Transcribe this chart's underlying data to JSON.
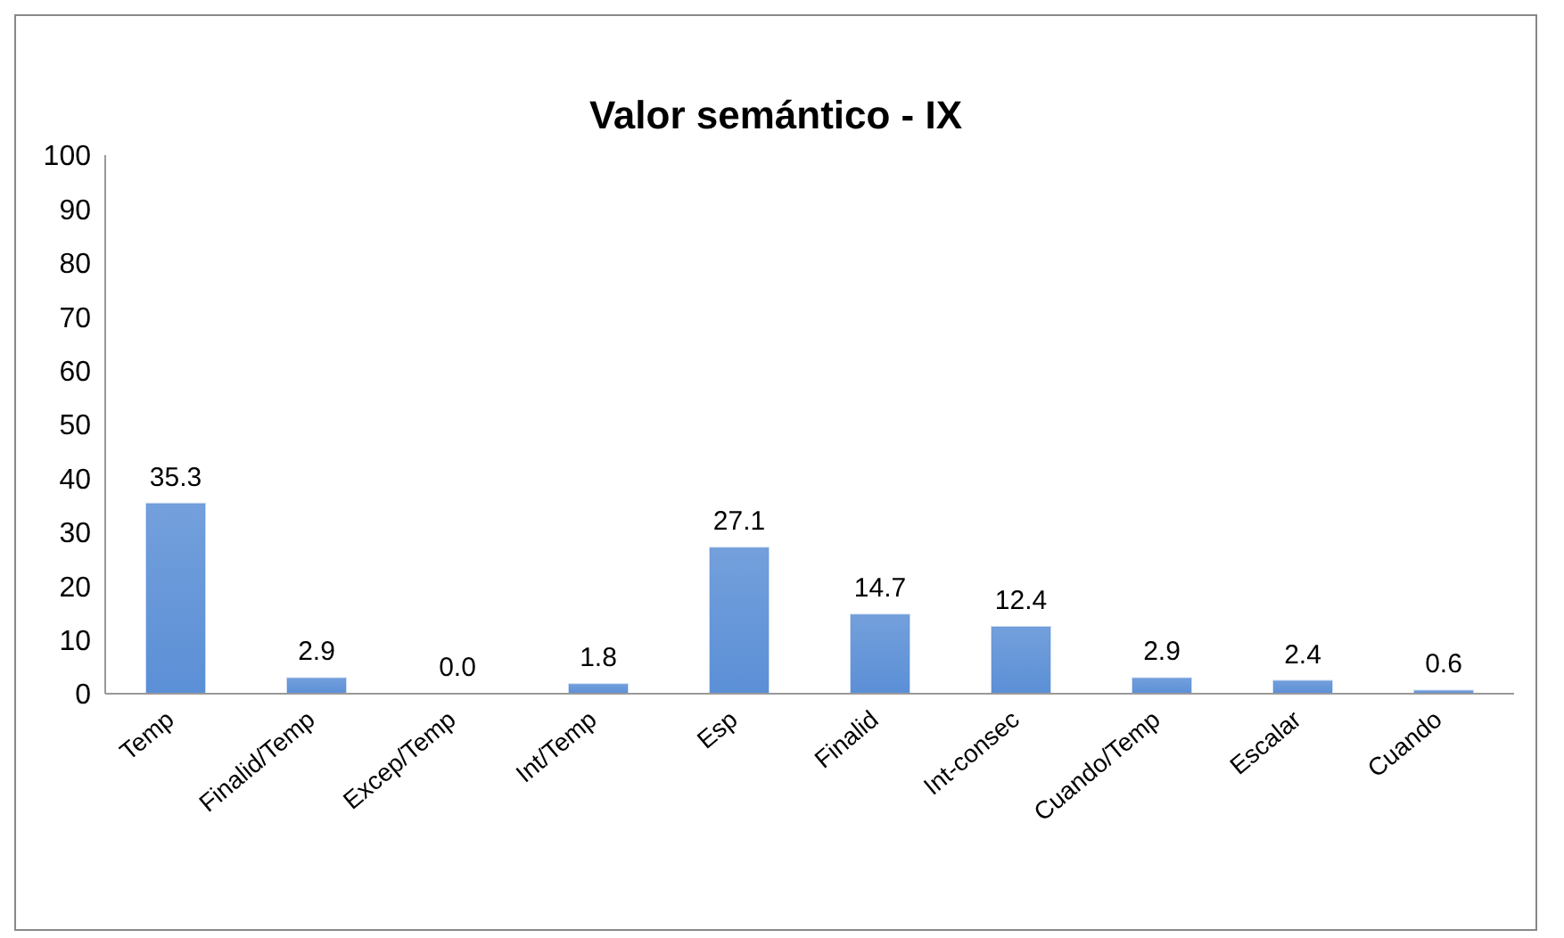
{
  "chart_data": {
    "type": "bar",
    "title": "Valor semántico - IX",
    "categories": [
      "Temp",
      "Finalid/Temp",
      "Excep/Temp",
      "Int/Temp",
      "Esp",
      "Finalid",
      "Int-consec",
      "Cuando/Temp",
      "Escalar",
      "Cuando"
    ],
    "values": [
      35.3,
      2.9,
      0.0,
      1.8,
      27.1,
      14.7,
      12.4,
      2.9,
      2.4,
      0.6
    ],
    "value_labels": [
      "35.3",
      "2.9",
      "0.0",
      "1.8",
      "27.1",
      "14.7",
      "12.4",
      "2.9",
      "2.4",
      "0.6"
    ],
    "color": "#5b8fd6",
    "ylim": [
      0,
      100
    ],
    "yticks": [
      0,
      10,
      20,
      30,
      40,
      50,
      60,
      70,
      80,
      90,
      100
    ],
    "grid": false,
    "legend": false
  }
}
